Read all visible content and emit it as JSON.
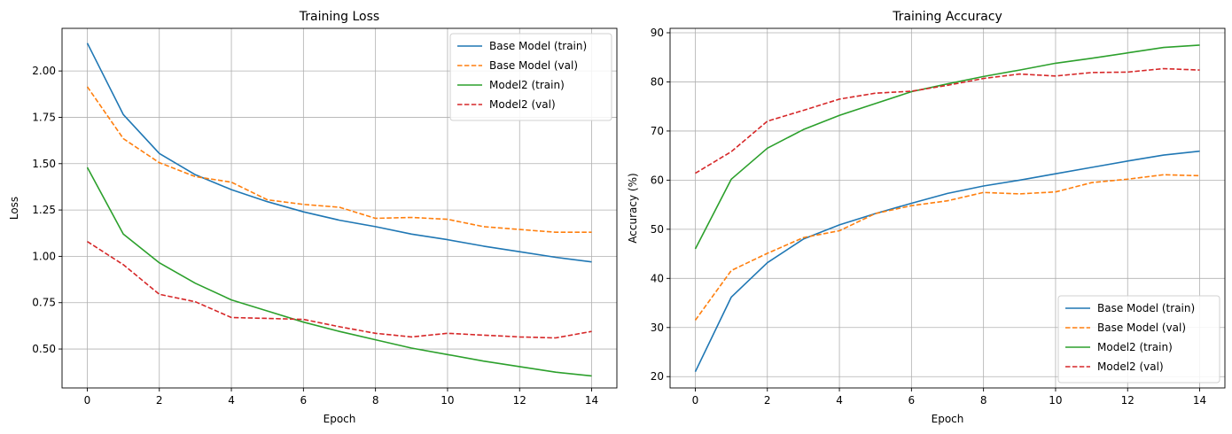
{
  "chart_data": [
    {
      "type": "line",
      "title": "Training Loss",
      "xlabel": "Epoch",
      "ylabel": "Loss",
      "xlim": [
        -0.7,
        14.7
      ],
      "ylim": [
        0.29,
        2.23
      ],
      "xticks": [
        0,
        2,
        4,
        6,
        8,
        10,
        12,
        14
      ],
      "yticks": [
        0.5,
        0.75,
        1.0,
        1.25,
        1.5,
        1.75,
        2.0
      ],
      "ytick_labels": [
        "0.50",
        "0.75",
        "1.00",
        "1.25",
        "1.50",
        "1.75",
        "2.00"
      ],
      "grid": true,
      "legend_position": "upper right",
      "x": [
        0,
        1,
        2,
        3,
        4,
        5,
        6,
        7,
        8,
        9,
        10,
        11,
        12,
        13,
        14
      ],
      "series": [
        {
          "name": "Base Model (train)",
          "color": "#1f77b4",
          "dashed": false,
          "values": [
            2.15,
            1.765,
            1.555,
            1.44,
            1.36,
            1.295,
            1.24,
            1.195,
            1.16,
            1.12,
            1.09,
            1.055,
            1.025,
            0.995,
            0.97
          ]
        },
        {
          "name": "Base Model (val)",
          "color": "#ff7f0e",
          "dashed": true,
          "values": [
            1.915,
            1.635,
            1.505,
            1.43,
            1.4,
            1.305,
            1.28,
            1.265,
            1.205,
            1.21,
            1.2,
            1.16,
            1.145,
            1.13,
            1.13
          ]
        },
        {
          "name": "Model2 (train)",
          "color": "#2ca02c",
          "dashed": false,
          "values": [
            1.48,
            1.12,
            0.965,
            0.855,
            0.765,
            0.705,
            0.645,
            0.595,
            0.55,
            0.505,
            0.47,
            0.435,
            0.405,
            0.375,
            0.355
          ]
        },
        {
          "name": "Model2 (val)",
          "color": "#d62728",
          "dashed": true,
          "values": [
            1.08,
            0.955,
            0.795,
            0.755,
            0.67,
            0.665,
            0.66,
            0.62,
            0.585,
            0.565,
            0.585,
            0.575,
            0.565,
            0.56,
            0.595
          ]
        }
      ]
    },
    {
      "type": "line",
      "title": "Training Accuracy",
      "xlabel": "Epoch",
      "ylabel": "Accuracy (%)",
      "xlim": [
        -0.7,
        14.7
      ],
      "ylim": [
        17.7,
        90.9
      ],
      "xticks": [
        0,
        2,
        4,
        6,
        8,
        10,
        12,
        14
      ],
      "yticks": [
        20,
        30,
        40,
        50,
        60,
        70,
        80,
        90
      ],
      "ytick_labels": [
        "20",
        "30",
        "40",
        "50",
        "60",
        "70",
        "80",
        "90"
      ],
      "grid": true,
      "legend_position": "lower right",
      "x": [
        0,
        1,
        2,
        3,
        4,
        5,
        6,
        7,
        8,
        9,
        10,
        11,
        12,
        13,
        14
      ],
      "series": [
        {
          "name": "Base Model (train)",
          "color": "#1f77b4",
          "dashed": false,
          "values": [
            21.0,
            36.2,
            43.2,
            48.0,
            50.9,
            53.2,
            55.3,
            57.3,
            58.8,
            60.0,
            61.3,
            62.6,
            63.9,
            65.1,
            65.9
          ]
        },
        {
          "name": "Base Model (val)",
          "color": "#ff7f0e",
          "dashed": true,
          "values": [
            31.5,
            41.6,
            45.1,
            48.3,
            49.7,
            53.2,
            54.8,
            55.8,
            57.5,
            57.2,
            57.6,
            59.5,
            60.2,
            61.1,
            60.9
          ]
        },
        {
          "name": "Model2 (train)",
          "color": "#2ca02c",
          "dashed": false,
          "values": [
            46.0,
            60.2,
            66.5,
            70.3,
            73.2,
            75.6,
            78.0,
            79.6,
            81.1,
            82.4,
            83.8,
            84.8,
            85.9,
            87.0,
            87.5
          ]
        },
        {
          "name": "Model2 (val)",
          "color": "#d62728",
          "dashed": true,
          "values": [
            61.4,
            65.8,
            72.0,
            74.2,
            76.5,
            77.7,
            78.1,
            79.3,
            80.7,
            81.6,
            81.2,
            81.9,
            82.0,
            82.7,
            82.4
          ]
        }
      ]
    }
  ]
}
